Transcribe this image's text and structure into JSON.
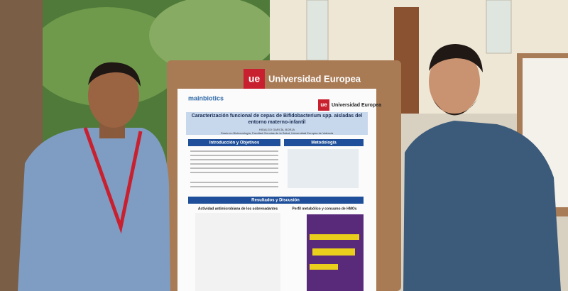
{
  "board": {
    "logo": "ue",
    "brand": "Universidad Europea"
  },
  "poster": {
    "sponsor": "mainbiotics",
    "logo": "ue",
    "brand": "Universidad Europea",
    "title": "Caracterización funcional de cepas de Bifidobacterium spp. aisladas del entorno materno-infantil",
    "author": "HIDALGO GARCÍA, BORJA",
    "affiliation": "Grado en Biotecnología, Facultad Ciencias de la Salud, Universidad Europea de Valencia",
    "sections": [
      "Introducción y Objetivos",
      "Metodología",
      "Resultados y Discusión"
    ],
    "panels": [
      "Actividad antimicrobiana de los sobrenadantes",
      "Perfil metabólico y consumo de HMOs"
    ]
  }
}
